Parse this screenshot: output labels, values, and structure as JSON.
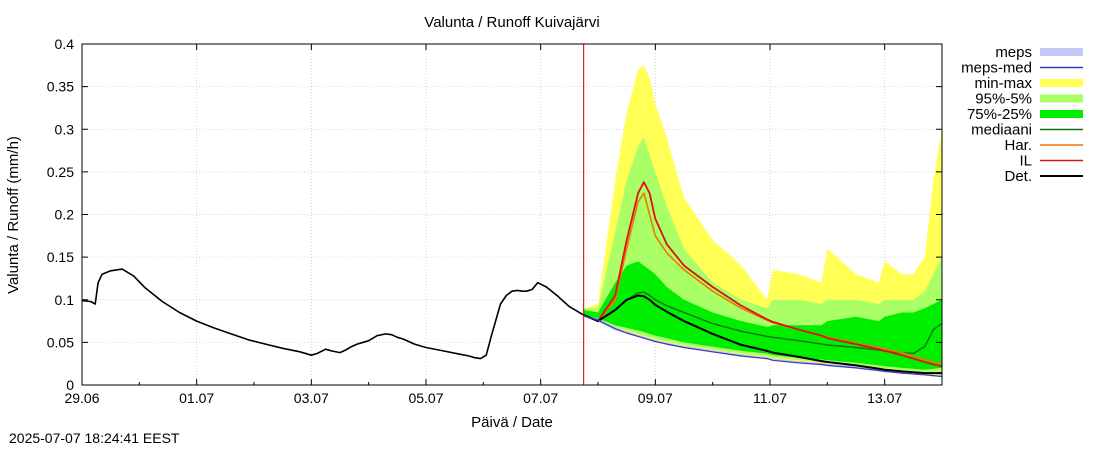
{
  "timestamp": "2025-07-07 18:24:41 EEST",
  "chart_data": {
    "type": "area",
    "title": "Valunta / Runoff  Kuivajärvi",
    "xlabel": "Päivä / Date",
    "ylabel": "Valunta / Runoff (mm/h)",
    "x_unit": "days since 29.06 00:00",
    "xlim": [
      0,
      15
    ],
    "ylim": [
      0,
      0.4
    ],
    "grid": true,
    "legend_position": "outside-right",
    "x_ticks": [
      {
        "x": 0,
        "label": "29.06"
      },
      {
        "x": 2,
        "label": "01.07"
      },
      {
        "x": 4,
        "label": "03.07"
      },
      {
        "x": 6,
        "label": "05.07"
      },
      {
        "x": 8,
        "label": "07.07"
      },
      {
        "x": 10,
        "label": "09.07"
      },
      {
        "x": 12,
        "label": "11.07"
      },
      {
        "x": 14,
        "label": "13.07"
      }
    ],
    "y_ticks": [
      {
        "y": 0,
        "label": "0"
      },
      {
        "y": 0.05,
        "label": "0.05"
      },
      {
        "y": 0.1,
        "label": "0.1"
      },
      {
        "y": 0.15,
        "label": "0.15"
      },
      {
        "y": 0.2,
        "label": "0.2"
      },
      {
        "y": 0.25,
        "label": "0.25"
      },
      {
        "y": 0.3,
        "label": "0.3"
      },
      {
        "y": 0.35,
        "label": "0.35"
      },
      {
        "y": 0.4,
        "label": "0.4"
      }
    ],
    "forecast_start_x": 8.75,
    "colors": {
      "meps": "#c4c8f5",
      "meps_med": "#3b3bb8",
      "min_max": "#ffff55",
      "p95_5": "#aaff66",
      "p75_25": "#00ee00",
      "mediaani": "#137313",
      "har": "#ee7700",
      "il": "#dd1111",
      "det": "#000000",
      "forecast_line": "#cc0000"
    },
    "legend": [
      {
        "key": "meps",
        "label": "meps",
        "kind": "band"
      },
      {
        "key": "meps_med",
        "label": "meps-med",
        "kind": "line"
      },
      {
        "key": "min_max",
        "label": "min-max",
        "kind": "band"
      },
      {
        "key": "p95_5",
        "label": "95%-5%",
        "kind": "band"
      },
      {
        "key": "p75_25",
        "label": "75%-25%",
        "kind": "band"
      },
      {
        "key": "mediaani",
        "label": "mediaani",
        "kind": "line"
      },
      {
        "key": "har",
        "label": "Har.",
        "kind": "line"
      },
      {
        "key": "il",
        "label": "IL",
        "kind": "line"
      },
      {
        "key": "det",
        "label": "Det.",
        "kind": "line"
      }
    ],
    "observed": {
      "x": [
        0,
        0.15,
        0.23,
        0.28,
        0.35,
        0.5,
        0.7,
        0.9,
        1.1,
        1.4,
        1.7,
        2.0,
        2.3,
        2.6,
        2.9,
        3.2,
        3.5,
        3.8,
        4.0,
        4.1,
        4.25,
        4.35,
        4.5,
        4.6,
        4.7,
        4.8,
        5.0,
        5.15,
        5.3,
        5.4,
        5.5,
        5.6,
        5.8,
        6.0,
        6.3,
        6.6,
        6.75,
        6.85,
        6.95,
        7.05,
        7.15,
        7.3,
        7.4,
        7.5,
        7.6,
        7.68,
        7.75,
        7.85,
        7.95,
        8.1,
        8.3,
        8.5,
        8.75
      ],
      "y": [
        0.099,
        0.098,
        0.095,
        0.12,
        0.13,
        0.134,
        0.136,
        0.128,
        0.114,
        0.098,
        0.085,
        0.075,
        0.067,
        0.06,
        0.053,
        0.048,
        0.043,
        0.039,
        0.035,
        0.037,
        0.042,
        0.04,
        0.038,
        0.041,
        0.045,
        0.048,
        0.052,
        0.058,
        0.06,
        0.059,
        0.056,
        0.054,
        0.048,
        0.044,
        0.04,
        0.036,
        0.034,
        0.032,
        0.031,
        0.035,
        0.06,
        0.095,
        0.105,
        0.11,
        0.111,
        0.11,
        0.11,
        0.112,
        0.12,
        0.115,
        0.104,
        0.092,
        0.082
      ]
    },
    "forecast_x": [
      8.75,
      9.0,
      9.3,
      9.5,
      9.7,
      9.8,
      9.9,
      10.0,
      10.2,
      10.5,
      11.0,
      11.5,
      11.95,
      12.05,
      12.5,
      12.9,
      13.0,
      13.5,
      13.9,
      14.0,
      14.3,
      14.5,
      14.7,
      14.85,
      15.0
    ],
    "series": [
      {
        "key": "min_max",
        "band": true,
        "upper": [
          0.09,
          0.095,
          0.24,
          0.32,
          0.37,
          0.375,
          0.36,
          0.33,
          0.29,
          0.22,
          0.17,
          0.14,
          0.1,
          0.135,
          0.13,
          0.12,
          0.16,
          0.13,
          0.12,
          0.145,
          0.13,
          0.13,
          0.15,
          0.24,
          0.3
        ],
        "lower": [
          0.082,
          0.075,
          0.066,
          0.062,
          0.058,
          0.056,
          0.054,
          0.052,
          0.049,
          0.045,
          0.04,
          0.035,
          0.032,
          0.03,
          0.027,
          0.025,
          0.024,
          0.021,
          0.018,
          0.017,
          0.015,
          0.013,
          0.012,
          0.011,
          0.01
        ]
      },
      {
        "key": "p95_5",
        "band": true,
        "upper": [
          0.09,
          0.09,
          0.18,
          0.24,
          0.28,
          0.29,
          0.27,
          0.25,
          0.21,
          0.16,
          0.12,
          0.1,
          0.09,
          0.1,
          0.1,
          0.095,
          0.1,
          0.1,
          0.095,
          0.1,
          0.1,
          0.1,
          0.11,
          0.13,
          0.15
        ],
        "lower": [
          0.082,
          0.076,
          0.068,
          0.064,
          0.06,
          0.058,
          0.056,
          0.054,
          0.051,
          0.047,
          0.042,
          0.037,
          0.034,
          0.032,
          0.029,
          0.027,
          0.026,
          0.023,
          0.02,
          0.019,
          0.017,
          0.015,
          0.014,
          0.013,
          0.012
        ]
      },
      {
        "key": "p75_25",
        "band": true,
        "upper": [
          0.088,
          0.085,
          0.12,
          0.14,
          0.145,
          0.14,
          0.135,
          0.13,
          0.115,
          0.1,
          0.085,
          0.075,
          0.068,
          0.07,
          0.07,
          0.07,
          0.075,
          0.08,
          0.075,
          0.08,
          0.085,
          0.085,
          0.09,
          0.095,
          0.1
        ],
        "lower": [
          0.082,
          0.078,
          0.07,
          0.067,
          0.064,
          0.062,
          0.06,
          0.058,
          0.055,
          0.05,
          0.045,
          0.04,
          0.037,
          0.035,
          0.032,
          0.03,
          0.029,
          0.026,
          0.023,
          0.022,
          0.02,
          0.019,
          0.018,
          0.019,
          0.02
        ]
      },
      {
        "key": "meps",
        "band": true,
        "upper": [
          0.082,
          0.078,
          0.068,
          0.063,
          0.059,
          0.057,
          0.055,
          0.053,
          0.05,
          0.046,
          0.041,
          0.036,
          0.033,
          0.031,
          0.028,
          0.026,
          0.025,
          0.022,
          0.019,
          0.018,
          0.016,
          0.014,
          0.013,
          0.012,
          0.011
        ],
        "lower": [
          0.08,
          0.074,
          0.064,
          0.06,
          0.056,
          0.054,
          0.052,
          0.05,
          0.047,
          0.043,
          0.038,
          0.033,
          0.03,
          0.028,
          0.025,
          0.023,
          0.022,
          0.019,
          0.016,
          0.015,
          0.013,
          0.012,
          0.011,
          0.01,
          0.009
        ]
      },
      {
        "key": "mediaani",
        "values": [
          0.082,
          0.076,
          0.088,
          0.1,
          0.108,
          0.109,
          0.105,
          0.1,
          0.093,
          0.085,
          0.072,
          0.063,
          0.057,
          0.056,
          0.052,
          0.048,
          0.047,
          0.044,
          0.041,
          0.04,
          0.038,
          0.037,
          0.045,
          0.065,
          0.072
        ]
      },
      {
        "key": "har",
        "values": [
          0.082,
          0.075,
          0.1,
          0.16,
          0.215,
          0.225,
          0.2,
          0.175,
          0.155,
          0.135,
          0.11,
          0.09,
          0.076,
          0.073,
          0.065,
          0.058,
          0.056,
          0.049,
          0.044,
          0.042,
          0.038,
          0.034,
          0.03,
          0.027,
          0.025
        ]
      },
      {
        "key": "il",
        "values": [
          0.082,
          0.075,
          0.105,
          0.17,
          0.225,
          0.238,
          0.225,
          0.195,
          0.165,
          0.14,
          0.115,
          0.093,
          0.077,
          0.074,
          0.065,
          0.058,
          0.055,
          0.048,
          0.042,
          0.04,
          0.035,
          0.031,
          0.027,
          0.024,
          0.022
        ]
      },
      {
        "key": "det",
        "values": [
          0.082,
          0.075,
          0.088,
          0.1,
          0.105,
          0.104,
          0.1,
          0.094,
          0.086,
          0.075,
          0.06,
          0.047,
          0.04,
          0.038,
          0.033,
          0.028,
          0.027,
          0.023,
          0.019,
          0.018,
          0.016,
          0.015,
          0.014,
          0.014,
          0.014
        ]
      },
      {
        "key": "meps_med",
        "values": [
          0.081,
          0.076,
          0.066,
          0.061,
          0.057,
          0.055,
          0.053,
          0.051,
          0.048,
          0.044,
          0.039,
          0.034,
          0.031,
          0.029,
          0.026,
          0.024,
          0.023,
          0.02,
          0.017,
          0.016,
          0.014,
          0.013,
          0.012,
          0.011,
          0.01
        ]
      }
    ]
  }
}
